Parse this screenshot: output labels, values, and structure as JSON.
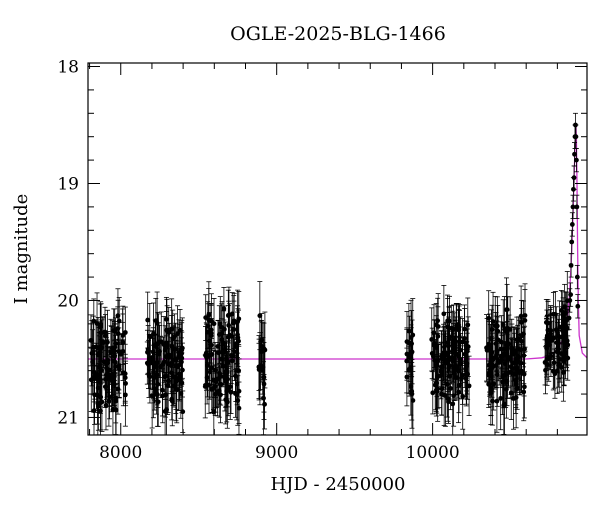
{
  "chart_data": {
    "type": "scatter",
    "title": "OGLE-2025-BLG-1466",
    "xlabel": "HJD - 2450000",
    "ylabel": "I magnitude",
    "xlim": [
      7790,
      10990
    ],
    "ylim": [
      21.15,
      17.97
    ],
    "y_inverted": true,
    "x_ticks": [
      8000,
      9000,
      10000
    ],
    "y_ticks": [
      18,
      19,
      20,
      21
    ],
    "grid": false,
    "point_color": "#000000",
    "model_color": "#cc33cc",
    "baseline_mag": 20.5,
    "observing_seasons": [
      {
        "x_range": [
          7805,
          8035
        ],
        "mean_mag": 20.55,
        "mag_spread": 0.5,
        "err": 0.22
      },
      {
        "x_range": [
          8170,
          8400
        ],
        "mean_mag": 20.55,
        "mag_spread": 0.45,
        "err": 0.22
      },
      {
        "x_range": [
          8540,
          8765
        ],
        "mean_mag": 20.5,
        "mag_spread": 0.5,
        "err": 0.22
      },
      {
        "x_range": [
          8885,
          8925
        ],
        "mean_mag": 20.6,
        "mag_spread": 0.5,
        "err": 0.25
      },
      {
        "x_range": [
          9830,
          9875
        ],
        "mean_mag": 20.5,
        "mag_spread": 0.5,
        "err": 0.25
      },
      {
        "x_range": [
          9990,
          10235
        ],
        "mean_mag": 20.5,
        "mag_spread": 0.45,
        "err": 0.22
      },
      {
        "x_range": [
          10345,
          10595
        ],
        "mean_mag": 20.5,
        "mag_spread": 0.45,
        "err": 0.22
      },
      {
        "x_range": [
          10720,
          10870
        ],
        "mean_mag": 20.3,
        "mag_spread": 0.4,
        "err": 0.2
      }
    ],
    "event_points": [
      {
        "x": 10875,
        "y": 20.15
      },
      {
        "x": 10880,
        "y": 20.0
      },
      {
        "x": 10885,
        "y": 19.95
      },
      {
        "x": 10888,
        "y": 19.7
      },
      {
        "x": 10892,
        "y": 19.5
      },
      {
        "x": 10896,
        "y": 19.35
      },
      {
        "x": 10900,
        "y": 19.2
      },
      {
        "x": 10903,
        "y": 19.05
      },
      {
        "x": 10907,
        "y": 18.95
      },
      {
        "x": 10910,
        "y": 18.75
      },
      {
        "x": 10913,
        "y": 18.6
      },
      {
        "x": 10916,
        "y": 18.5
      },
      {
        "x": 10919,
        "y": 18.6
      },
      {
        "x": 10922,
        "y": 18.8
      },
      {
        "x": 10925,
        "y": 19.2
      },
      {
        "x": 10928,
        "y": 19.8
      },
      {
        "x": 10931,
        "y": 20.05
      }
    ],
    "model_curve": [
      [
        7790,
        20.5
      ],
      [
        10500,
        20.5
      ],
      [
        10600,
        20.5
      ],
      [
        10700,
        20.49
      ],
      [
        10750,
        20.47
      ],
      [
        10800,
        20.42
      ],
      [
        10840,
        20.32
      ],
      [
        10860,
        20.2
      ],
      [
        10875,
        20.0
      ],
      [
        10888,
        19.7
      ],
      [
        10898,
        19.35
      ],
      [
        10906,
        19.0
      ],
      [
        10912,
        18.75
      ],
      [
        10916,
        18.55
      ],
      [
        10919,
        18.5
      ],
      [
        10922,
        18.62
      ],
      [
        10926,
        19.0
      ],
      [
        10930,
        19.55
      ],
      [
        10934,
        20.0
      ],
      [
        10940,
        20.3
      ],
      [
        10960,
        20.45
      ],
      [
        10990,
        20.49
      ]
    ]
  }
}
